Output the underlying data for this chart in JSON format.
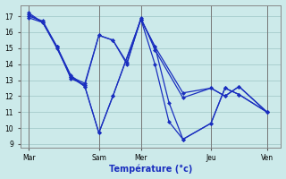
{
  "xlabel": "Température (°c)",
  "ylim": [
    8.8,
    17.7
  ],
  "yticks": [
    9,
    10,
    11,
    12,
    13,
    14,
    15,
    16,
    17
  ],
  "day_labels": [
    "Mar",
    "Sam",
    "Mer",
    "Jeu",
    "Ven"
  ],
  "background_color": "#cceaea",
  "grid_color": "#aad0d0",
  "line_color": "#1a2fbf",
  "series": [
    {
      "x": [
        0,
        0.5,
        1.0,
        1.5,
        2.0,
        2.5,
        3.0,
        3.5,
        4.0,
        4.5,
        5.5,
        6.5,
        7.0,
        7.5,
        8.5
      ],
      "y": [
        17.0,
        16.7,
        15.1,
        13.2,
        12.8,
        15.8,
        15.5,
        14.1,
        16.8,
        15.1,
        12.2,
        12.5,
        12.0,
        12.6,
        11.0
      ]
    },
    {
      "x": [
        0,
        0.5,
        1.0,
        1.5,
        2.0,
        2.5,
        3.0,
        3.5,
        4.0,
        4.5,
        5.5,
        6.5,
        7.0,
        7.5,
        8.5
      ],
      "y": [
        16.9,
        16.6,
        15.1,
        13.1,
        12.7,
        15.8,
        15.5,
        14.0,
        16.9,
        14.9,
        11.9,
        12.5,
        12.0,
        12.6,
        11.0
      ]
    },
    {
      "x": [
        0,
        0.5,
        1.0,
        1.5,
        2.0,
        2.5,
        3.0,
        4.0,
        4.5,
        5.0,
        5.5,
        6.5,
        7.0,
        7.5,
        8.5
      ],
      "y": [
        17.2,
        16.6,
        15.1,
        13.3,
        12.6,
        9.7,
        12.0,
        16.8,
        15.1,
        11.6,
        9.3,
        10.3,
        12.5,
        12.1,
        11.0
      ]
    },
    {
      "x": [
        0,
        0.5,
        1.0,
        1.5,
        2.0,
        2.5,
        3.0,
        4.0,
        4.5,
        5.0,
        5.5,
        6.5,
        7.0,
        7.5,
        8.5
      ],
      "y": [
        17.1,
        16.6,
        15.0,
        13.2,
        12.6,
        9.7,
        12.0,
        16.8,
        14.0,
        10.4,
        9.3,
        10.3,
        12.5,
        12.1,
        11.0
      ]
    }
  ],
  "day_x": [
    0,
    2.5,
    4.0,
    6.5,
    8.5
  ],
  "xlim": [
    -0.3,
    9.0
  ]
}
